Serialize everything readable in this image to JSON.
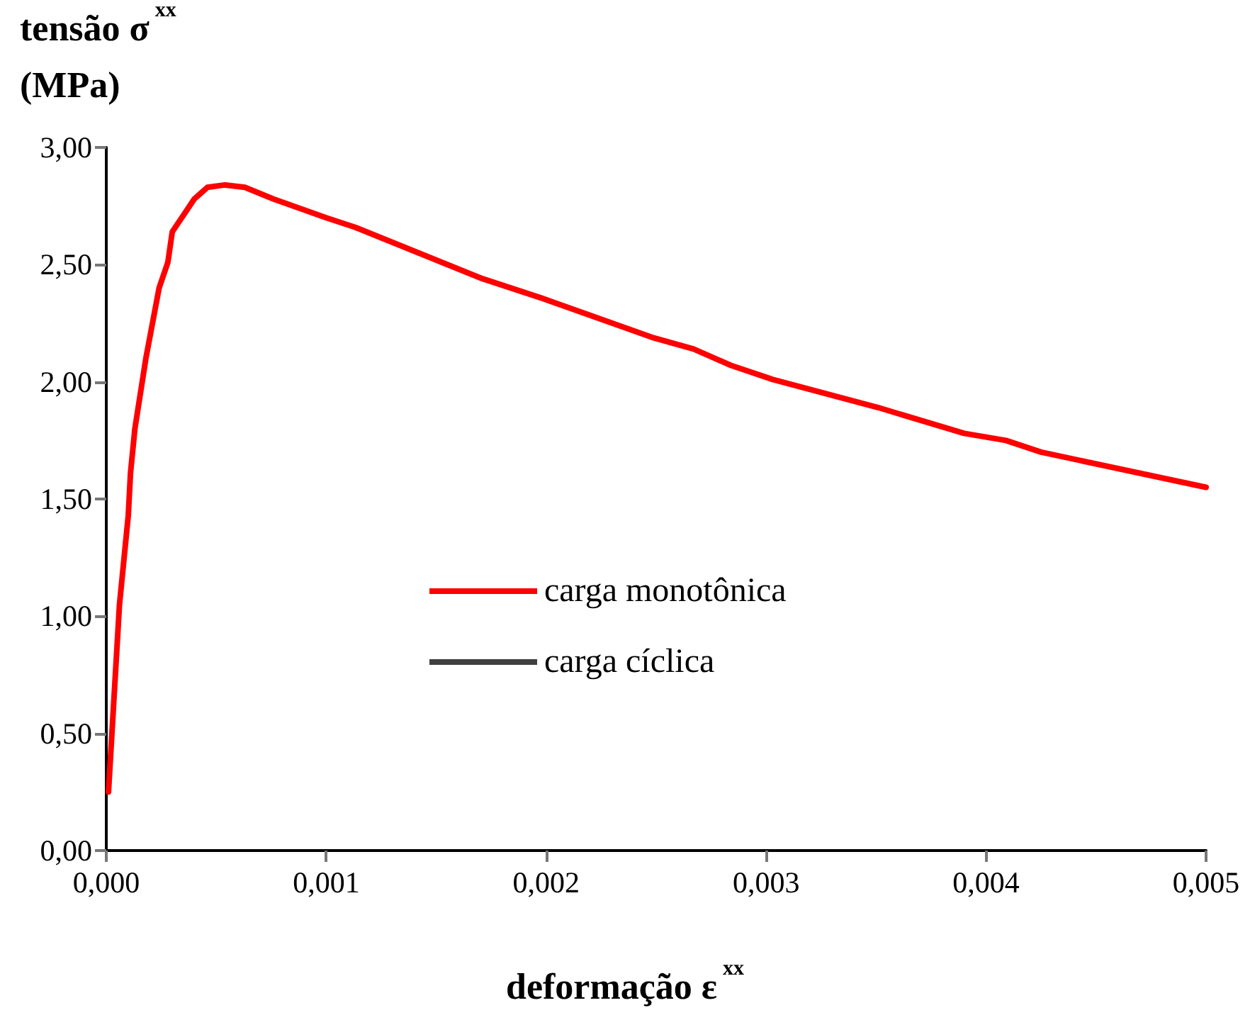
{
  "chart_data": {
    "type": "line",
    "ylabel": "tensão σ$^{xx}$\n(MPa)",
    "xlabel": "deformação ε$^{xx}$",
    "xlim": [
      0,
      0.005
    ],
    "ylim": [
      0,
      3
    ],
    "xticks": [
      {
        "value": 0,
        "label": "0,000"
      },
      {
        "value": 0.001,
        "label": "0,001"
      },
      {
        "value": 0.002,
        "label": "0,002"
      },
      {
        "value": 0.003,
        "label": "0,003"
      },
      {
        "value": 0.004,
        "label": "0,004"
      },
      {
        "value": 0.005,
        "label": "0,005"
      }
    ],
    "yticks": [
      {
        "value": 0,
        "label": "0,00"
      },
      {
        "value": 0.5,
        "label": "0,50"
      },
      {
        "value": 1,
        "label": "1,00"
      },
      {
        "value": 1.5,
        "label": "1,50"
      },
      {
        "value": 2,
        "label": "2,00"
      },
      {
        "value": 2.5,
        "label": "2,50"
      },
      {
        "value": 3,
        "label": "3,00"
      }
    ],
    "grid": false,
    "legend": "center",
    "marker": "none",
    "line_style": "solid",
    "series": [
      {
        "name": "carga monotônica",
        "color": "#ff0000",
        "x": [
          1e-05,
          6e-05,
          0.0001,
          0.00011,
          0.00013,
          0.00018,
          0.00024,
          0.00028,
          0.0003,
          0.0004,
          0.00046,
          0.00054,
          0.00063,
          0.00076,
          0.001,
          0.00113,
          0.00171,
          0.00197,
          0.00248,
          0.00267,
          0.00284,
          0.00303,
          0.00351,
          0.0039,
          0.00409,
          0.00425,
          0.005
        ],
        "values": [
          0.25,
          1.05,
          1.43,
          1.61,
          1.8,
          2.1,
          2.4,
          2.51,
          2.64,
          2.78,
          2.83,
          2.84,
          2.83,
          2.78,
          2.7,
          2.66,
          2.44,
          2.36,
          2.19,
          2.14,
          2.07,
          2.01,
          1.89,
          1.78,
          1.75,
          1.7,
          1.55
        ]
      },
      {
        "name": "carga cíclica",
        "color": "#404040"
      }
    ]
  }
}
